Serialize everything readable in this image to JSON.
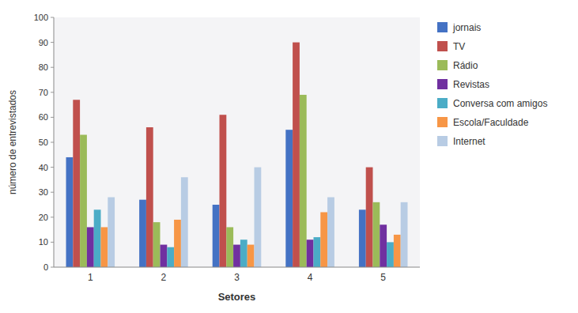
{
  "chart_data": {
    "type": "bar",
    "categories": [
      "1",
      "2",
      "3",
      "4",
      "5"
    ],
    "series": [
      {
        "name": "jornais",
        "color": "#4472C4",
        "values": [
          44,
          27,
          25,
          55,
          23
        ]
      },
      {
        "name": "TV",
        "color": "#C0504D",
        "values": [
          67,
          56,
          61,
          90,
          40
        ]
      },
      {
        "name": "Rádio",
        "color": "#9BBB59",
        "values": [
          53,
          18,
          16,
          69,
          26
        ]
      },
      {
        "name": "Revistas",
        "color": "#7030A0",
        "values": [
          16,
          9,
          9,
          11,
          17
        ]
      },
      {
        "name": "Conversa com amigos",
        "color": "#4BACC6",
        "values": [
          23,
          8,
          11,
          12,
          10
        ]
      },
      {
        "name": "Escola/Faculdade",
        "color": "#F79646",
        "values": [
          16,
          19,
          9,
          22,
          13
        ]
      },
      {
        "name": "Internet",
        "color": "#B8CCE4",
        "values": [
          28,
          36,
          40,
          28,
          26
        ]
      }
    ],
    "xlabel": "Setores",
    "ylabel": "número de entrevistados",
    "ylim": [
      0,
      100
    ],
    "yticks": [
      0,
      10,
      20,
      30,
      40,
      50,
      60,
      70,
      80,
      90,
      100
    ],
    "grid": false,
    "legend": "right"
  }
}
